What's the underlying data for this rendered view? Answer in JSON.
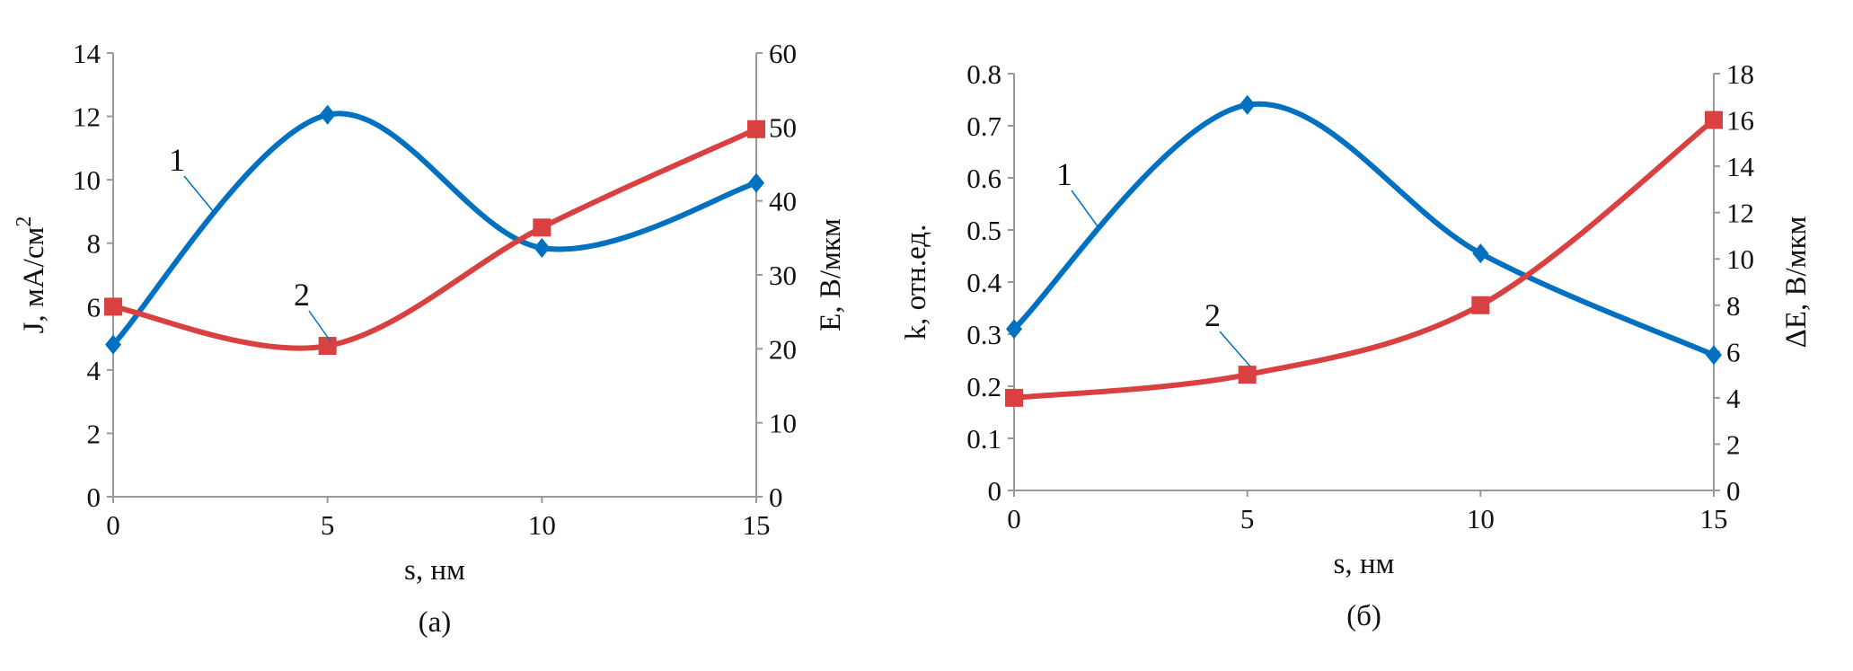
{
  "chart_data": [
    {
      "type": "line",
      "caption": "(а)",
      "xlabel": "s, нм",
      "ylabel": "J, мА/см²",
      "ylabel_main": "J, мА/см",
      "ylabel_sup": "2",
      "y2label": "E, В/мкм",
      "x": [
        0,
        5,
        10,
        15
      ],
      "xticks": [
        "0",
        "5",
        "10",
        "15"
      ],
      "xlim": [
        0,
        15
      ],
      "ylim": [
        0,
        14
      ],
      "yticks": [
        "0",
        "2",
        "4",
        "6",
        "8",
        "10",
        "12",
        "14"
      ],
      "y2lim": [
        0,
        60
      ],
      "y2ticks": [
        "0",
        "10",
        "20",
        "30",
        "40",
        "50",
        "60"
      ],
      "grid": false,
      "smooth": true,
      "series": [
        {
          "label": "1",
          "axis": "left",
          "marker": "diamond",
          "color": "#0070C0",
          "values": [
            4.8,
            12.05,
            7.85,
            9.9
          ]
        },
        {
          "label": "2",
          "axis": "right",
          "marker": "square",
          "color": "#D94040",
          "values": [
            25.7,
            20.4,
            36.4,
            49.7
          ]
        }
      ]
    },
    {
      "type": "line",
      "caption": "(б)",
      "xlabel": "s, нм",
      "ylabel": "k, отн.ед.",
      "y2label": "ΔE, В/мкм",
      "x": [
        0,
        5,
        10,
        15
      ],
      "xticks": [
        "0",
        "5",
        "10",
        "15"
      ],
      "xlim": [
        0,
        15
      ],
      "ylim": [
        0,
        0.8
      ],
      "yticks": [
        "0",
        "0.1",
        "0.2",
        "0.3",
        "0.4",
        "0.5",
        "0.6",
        "0.7",
        "0.8"
      ],
      "y2lim": [
        0,
        18
      ],
      "y2ticks": [
        "0",
        "2",
        "4",
        "6",
        "8",
        "10",
        "12",
        "14",
        "16",
        "18"
      ],
      "grid": false,
      "smooth": true,
      "series": [
        {
          "label": "1",
          "axis": "left",
          "marker": "diamond",
          "color": "#0070C0",
          "values": [
            0.31,
            0.74,
            0.455,
            0.26
          ]
        },
        {
          "label": "2",
          "axis": "right",
          "marker": "square",
          "color": "#D94040",
          "values": [
            4.0,
            5.0,
            8.0,
            16.0
          ]
        }
      ]
    }
  ]
}
